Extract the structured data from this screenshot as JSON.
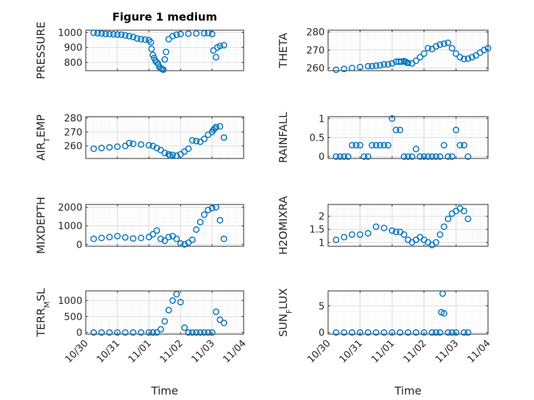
{
  "title": "Figure 1 medium",
  "colors": {
    "marker": "#0072BD",
    "axis": "#262626",
    "grid": "#d9d9d9"
  },
  "x_tick_labels": [
    "10/30",
    "10/31",
    "11/01",
    "11/02",
    "11/03",
    "11/04"
  ],
  "x_label": "Time",
  "chart_data": [
    {
      "type": "scatter",
      "ylabel": "PRESSURE",
      "ylabel_sub": "",
      "ylabel_suffix": "",
      "ylim": [
        745,
        1015
      ],
      "yticks": [
        800,
        900,
        1000
      ],
      "x": [
        "10/30 06:00",
        "10/30 09:00",
        "10/30 12:00",
        "10/30 15:00",
        "10/30 18:00",
        "10/30 21:00",
        "10/31 00:00",
        "10/31 03:00",
        "10/31 06:00",
        "10/31 09:00",
        "10/31 12:00",
        "10/31 15:00",
        "10/31 18:00",
        "10/31 21:00",
        "11/01 00:00",
        "11/01 01:30",
        "11/01 02:00",
        "11/01 03:00",
        "11/01 04:00",
        "11/01 05:00",
        "11/01 06:00",
        "11/01 07:00",
        "11/01 08:00",
        "11/01 09:00",
        "11/01 10:00",
        "11/01 11:00",
        "11/01 12:00",
        "11/01 13:00",
        "11/01 15:00",
        "11/01 18:00",
        "11/01 21:00",
        "11/02 00:00",
        "11/02 06:00",
        "11/02 12:00",
        "11/02 18:00",
        "11/02 21:00",
        "11/03 00:00",
        "11/03 01:00",
        "11/03 03:00",
        "11/03 04:00",
        "11/03 06:00",
        "11/03 09:00"
      ],
      "y": [
        998,
        995,
        993,
        990,
        989,
        988,
        986,
        985,
        980,
        975,
        970,
        960,
        955,
        952,
        948,
        935,
        890,
        850,
        830,
        810,
        800,
        790,
        770,
        760,
        755,
        752,
        820,
        870,
        955,
        975,
        985,
        990,
        992,
        993,
        995,
        996,
        990,
        880,
        835,
        900,
        910,
        915
      ]
    },
    {
      "type": "scatter",
      "ylabel": "THETA",
      "ylabel_sub": "",
      "ylabel_suffix": "",
      "ylim": [
        258.5,
        281
      ],
      "yticks": [
        260,
        270,
        280
      ],
      "x": [
        "10/30 06:00",
        "10/30 12:00",
        "10/30 18:00",
        "10/31 00:00",
        "10/31 06:00",
        "10/31 09:00",
        "10/31 12:00",
        "10/31 15:00",
        "10/31 18:00",
        "10/31 21:00",
        "11/01 00:00",
        "11/01 03:00",
        "11/01 05:00",
        "11/01 07:00",
        "11/01 09:00",
        "11/01 10:00",
        "11/01 11:00",
        "11/01 12:00",
        "11/01 15:00",
        "11/01 18:00",
        "11/01 21:00",
        "11/02 00:00",
        "11/02 03:00",
        "11/02 06:00",
        "11/02 09:00",
        "11/02 12:00",
        "11/02 15:00",
        "11/02 18:00",
        "11/02 21:00",
        "11/03 00:00",
        "11/03 03:00",
        "11/03 06:00",
        "11/03 09:00",
        "11/03 12:00",
        "11/03 15:00",
        "11/03 18:00",
        "11/03 21:00",
        "11/04 00:00"
      ],
      "y": [
        259,
        259.5,
        260,
        260.5,
        261,
        261,
        261.3,
        261.5,
        262,
        262,
        262.5,
        263.5,
        263.5,
        263.5,
        263.8,
        263.5,
        263,
        262.8,
        262.5,
        264,
        266,
        268,
        271,
        270.5,
        272,
        273,
        273.5,
        274,
        271,
        268,
        266,
        265,
        265.2,
        266,
        267,
        268.5,
        270,
        271
      ]
    },
    {
      "type": "scatter",
      "ylabel": "AIR",
      "ylabel_sub": "T",
      "ylabel_suffix": "EMP",
      "ylim": [
        251,
        281
      ],
      "yticks": [
        260,
        270,
        280
      ],
      "x": [
        "10/30 06:00",
        "10/30 12:00",
        "10/30 18:00",
        "10/31 00:00",
        "10/31 06:00",
        "10/31 09:00",
        "10/31 12:00",
        "10/31 18:00",
        "11/01 00:00",
        "11/01 03:00",
        "11/01 06:00",
        "11/01 09:00",
        "11/01 12:00",
        "11/01 15:00",
        "11/01 16:00",
        "11/01 18:00",
        "11/01 21:00",
        "11/02 00:00",
        "11/02 03:00",
        "11/02 06:00",
        "11/02 09:00",
        "11/02 12:00",
        "11/02 15:00",
        "11/02 18:00",
        "11/02 21:00",
        "11/03 00:00",
        "11/03 01:00",
        "11/03 02:00",
        "11/03 03:00",
        "11/03 06:00",
        "11/03 09:00"
      ],
      "y": [
        258,
        258.5,
        259,
        259.5,
        260,
        262,
        261.5,
        261,
        260.5,
        260,
        258.5,
        257,
        255,
        254,
        253,
        253.5,
        253,
        254,
        256,
        258,
        264,
        263.5,
        263,
        265,
        268,
        270,
        271.5,
        272.5,
        273.5,
        274,
        266
      ]
    },
    {
      "type": "scatter",
      "ylabel": "RAINFALL",
      "ylabel_sub": "",
      "ylabel_suffix": "",
      "ylim": [
        -0.05,
        1.05
      ],
      "yticks": [
        0,
        0.5,
        1
      ],
      "x": [
        "10/30 06:00",
        "10/30 09:00",
        "10/30 12:00",
        "10/30 15:00",
        "10/30 18:00",
        "10/30 21:00",
        "10/31 00:00",
        "10/31 03:00",
        "10/31 06:00",
        "10/31 09:00",
        "10/31 12:00",
        "10/31 15:00",
        "10/31 18:00",
        "10/31 21:00",
        "11/01 00:00",
        "11/01 03:00",
        "11/01 06:00",
        "11/01 09:00",
        "11/01 12:00",
        "11/01 15:00",
        "11/01 18:00",
        "11/01 21:00",
        "11/02 00:00",
        "11/02 03:00",
        "11/02 06:00",
        "11/02 09:00",
        "11/02 12:00",
        "11/02 15:00",
        "11/02 18:00",
        "11/02 21:00",
        "11/03 00:00",
        "11/03 03:00",
        "11/03 06:00",
        "11/03 09:00"
      ],
      "y": [
        0,
        0,
        0,
        0,
        0.3,
        0.3,
        0.3,
        0,
        0,
        0.3,
        0.3,
        0.3,
        0.3,
        0.3,
        1,
        0.7,
        0.7,
        0,
        0,
        0,
        0.2,
        0,
        0,
        0,
        0,
        0,
        0,
        0.3,
        0,
        0,
        0.7,
        0.3,
        0.3,
        0
      ]
    },
    {
      "type": "scatter",
      "ylabel": "MIXDEPTH",
      "ylabel_sub": "",
      "ylabel_suffix": "",
      "ylim": [
        -100,
        2150
      ],
      "yticks": [
        0,
        1000,
        2000
      ],
      "x": [
        "10/30 06:00",
        "10/30 12:00",
        "10/30 18:00",
        "10/31 00:00",
        "10/31 06:00",
        "10/31 12:00",
        "10/31 18:00",
        "11/01 00:00",
        "11/01 03:00",
        "11/01 06:00",
        "11/01 09:00",
        "11/01 12:00",
        "11/01 15:00",
        "11/01 18:00",
        "11/01 21:00",
        "11/02 00:00",
        "11/02 03:00",
        "11/02 06:00",
        "11/02 09:00",
        "11/02 12:00",
        "11/02 15:00",
        "11/02 18:00",
        "11/02 21:00",
        "11/03 00:00",
        "11/03 03:00",
        "11/03 06:00",
        "11/03 09:00"
      ],
      "y": [
        300,
        350,
        400,
        450,
        380,
        320,
        350,
        400,
        550,
        750,
        300,
        200,
        400,
        450,
        300,
        50,
        0,
        100,
        250,
        800,
        1200,
        1600,
        1850,
        1950,
        2000,
        1300,
        300
      ]
    },
    {
      "type": "scatter",
      "ylabel": "H2OMIXRA",
      "ylabel_sub": "",
      "ylabel_suffix": "",
      "ylim": [
        0.85,
        2.45
      ],
      "yticks": [
        1,
        1.5,
        2
      ],
      "x": [
        "10/30 06:00",
        "10/30 12:00",
        "10/30 18:00",
        "10/31 00:00",
        "10/31 06:00",
        "10/31 12:00",
        "10/31 18:00",
        "11/01 00:00",
        "11/01 03:00",
        "11/01 06:00",
        "11/01 09:00",
        "11/01 12:00",
        "11/01 15:00",
        "11/01 18:00",
        "11/01 21:00",
        "11/02 00:00",
        "11/02 03:00",
        "11/02 06:00",
        "11/02 09:00",
        "11/02 12:00",
        "11/02 15:00",
        "11/02 18:00",
        "11/02 21:00",
        "11/03 00:00",
        "11/03 03:00",
        "11/03 06:00",
        "11/03 09:00"
      ],
      "y": [
        1.1,
        1.2,
        1.3,
        1.3,
        1.35,
        1.6,
        1.55,
        1.45,
        1.4,
        1.4,
        1.3,
        1.1,
        1.0,
        1.1,
        1.2,
        1.1,
        1.0,
        0.9,
        1.0,
        1.3,
        1.6,
        1.9,
        2.1,
        2.2,
        2.3,
        2.2,
        1.9
      ]
    },
    {
      "type": "scatter",
      "ylabel": "TERR",
      "ylabel_sub": "M",
      "ylabel_suffix": "SL",
      "ylim": [
        -50,
        1300
      ],
      "yticks": [
        0,
        500,
        1000
      ],
      "x": [
        "10/30 06:00",
        "10/30 12:00",
        "10/30 18:00",
        "10/31 00:00",
        "10/31 06:00",
        "10/31 12:00",
        "10/31 18:00",
        "11/01 00:00",
        "11/01 03:00",
        "11/01 06:00",
        "11/01 09:00",
        "11/01 12:00",
        "11/01 15:00",
        "11/01 18:00",
        "11/01 21:00",
        "11/02 00:00",
        "11/02 03:00",
        "11/02 06:00",
        "11/02 09:00",
        "11/02 12:00",
        "11/02 15:00",
        "11/02 18:00",
        "11/02 21:00",
        "11/03 00:00",
        "11/03 03:00",
        "11/03 06:00",
        "11/03 09:00"
      ],
      "y": [
        0,
        0,
        0,
        0,
        0,
        0,
        0,
        0,
        0,
        0,
        100,
        350,
        700,
        1000,
        1200,
        950,
        150,
        0,
        0,
        0,
        0,
        0,
        0,
        0,
        650,
        400,
        300
      ]
    },
    {
      "type": "scatter",
      "ylabel": "SUN",
      "ylabel_sub": "F",
      "ylabel_suffix": "LUX",
      "ylim": [
        -0.3,
        7.8
      ],
      "yticks": [
        0,
        5
      ],
      "x": [
        "10/30 06:00",
        "10/30 12:00",
        "10/30 18:00",
        "10/31 00:00",
        "10/31 06:00",
        "10/31 12:00",
        "10/31 18:00",
        "11/01 00:00",
        "11/01 06:00",
        "11/01 12:00",
        "11/01 18:00",
        "11/02 00:00",
        "11/02 06:00",
        "11/02 09:00",
        "11/02 12:00",
        "11/02 13:00",
        "11/02 14:00",
        "11/02 15:00",
        "11/02 18:00",
        "11/02 21:00",
        "11/03 00:00",
        "11/03 06:00",
        "11/03 09:00"
      ],
      "y": [
        0,
        0,
        0,
        0,
        0,
        0,
        0,
        0,
        0,
        0,
        0,
        0,
        0,
        0,
        0,
        3.8,
        7.3,
        3.6,
        0,
        0,
        0,
        0,
        0
      ]
    }
  ]
}
